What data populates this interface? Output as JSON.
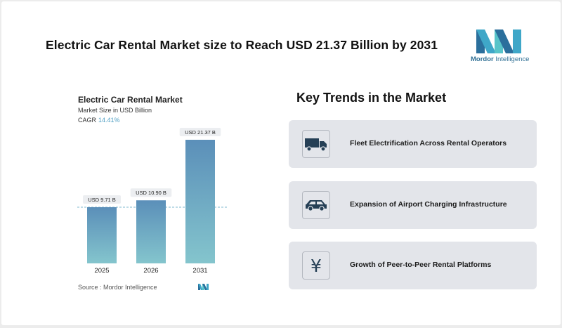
{
  "header": {
    "title": "Electric Car Rental Market size to Reach USD 21.37 Billion by 2031",
    "logo_text_bold": "Mordor",
    "logo_text_rest": " Intelligence"
  },
  "chart": {
    "title": "Electric Car Rental Market",
    "subtitle": "Market Size in USD Billion",
    "cagr_label": "CAGR",
    "cagr_value": "14.41%",
    "source": "Source :  Mordor Intelligence"
  },
  "chart_data": {
    "type": "bar",
    "categories": [
      "2025",
      "2026",
      "2031"
    ],
    "values": [
      9.71,
      10.9,
      21.37
    ],
    "data_labels": [
      "USD 9.71 B",
      "USD 10.90 B",
      "USD 21.37 B"
    ],
    "ylabel": "Market Size in USD Billion",
    "ylim": [
      0,
      21.37
    ],
    "reference_line": 9.71,
    "colors": {
      "bar_top": "#5b8fb9",
      "bar_bottom": "#84c5cd",
      "reference": "#7fb8cf"
    }
  },
  "trends": {
    "title": "Key Trends in the Market",
    "items": [
      {
        "label": "Fleet Electrification Across Rental Operators",
        "icon": "truck-icon"
      },
      {
        "label": "Expansion of Airport Charging Infrastructure",
        "icon": "car-icon"
      },
      {
        "label": "Growth of Peer-to-Peer Rental Platforms",
        "icon": "yen-icon",
        "glyph": "¥"
      }
    ]
  },
  "colors": {
    "icon": "#253f55",
    "card_bg": "#e3e5ea",
    "accent": "#4f9fc3"
  }
}
